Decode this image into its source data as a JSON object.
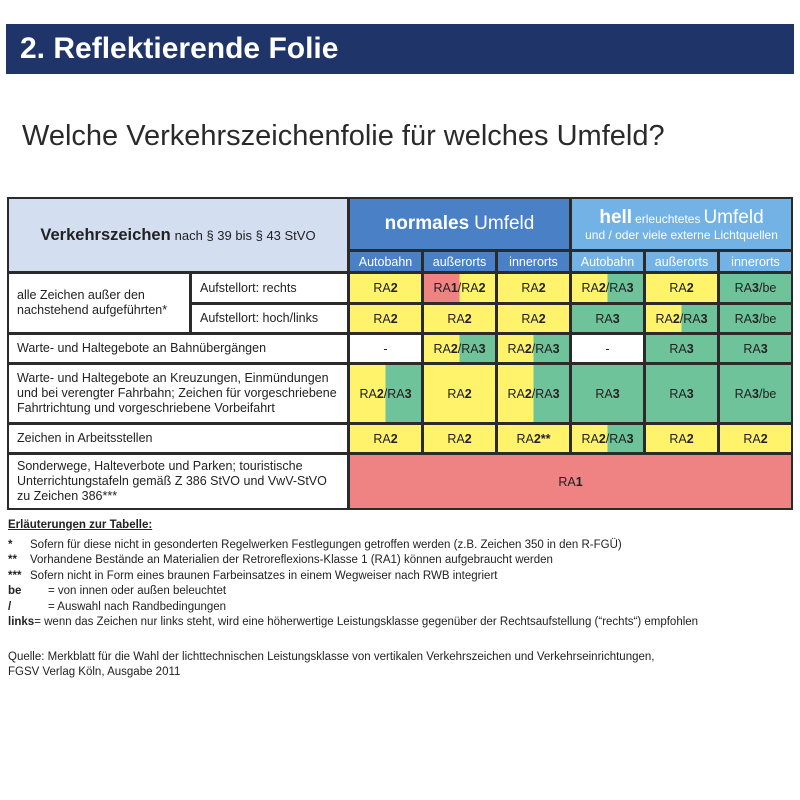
{
  "title": "2. Reflektierende Folie",
  "question": "Welche Verkehrszeichenfolie für welches Umfeld?",
  "colors": {
    "title_bar": "#1f3468",
    "normal_header": "#4a80c6",
    "hell_header": "#72b2e4",
    "corner": "#d3def0",
    "yellow": "#fff36b",
    "green": "#6fc39b",
    "red": "#ef8282",
    "white": "#ffffff"
  },
  "table": {
    "corner_bold": "Verkehrszeichen",
    "corner_rest": "nach § 39 bis § 43 StVO",
    "normal_bold": "normales",
    "normal_rest": "Umfeld",
    "hell_bold": "hell",
    "hell_small": "erleuchtetes",
    "hell_rest": "Umfeld",
    "hell_line2": "und / oder viele externe Lichtquellen",
    "subheaders": [
      "Autobahn",
      "außerorts",
      "innerorts",
      "Autobahn",
      "außerorts",
      "innerorts"
    ],
    "row_labels": {
      "group1": "alle Zeichen außer den nachstehend aufgeführten*",
      "group1_sub1": "Aufstellort: rechts",
      "group1_sub2": "Aufstellort: hoch/links",
      "row3": "Warte- und Haltegebote an Bahnübergängen",
      "row4": "Warte- und Haltegebote an Kreuzungen, Einmündungen und bei verengter Fahrbahn; Zeichen für vorgeschriebene Fahrtrichtung und vorgeschriebene Vorbeifahrt",
      "row5": "Zeichen in Arbeitsstellen",
      "row6": "Sonderwege, Halteverbote und Parken; touristische Unterrichtungstafeln gemäß Z 386 StVO und VwV-StVO zu Zeichen 386***"
    },
    "rows": [
      [
        {
          "t": "RA2",
          "f": [
            "yellow"
          ]
        },
        {
          "t": "RA1/RA2",
          "f": [
            "red",
            "yellow"
          ]
        },
        {
          "t": "RA2",
          "f": [
            "yellow"
          ]
        },
        {
          "t": "RA2/RA3",
          "f": [
            "yellow",
            "green"
          ]
        },
        {
          "t": "RA2",
          "f": [
            "yellow"
          ]
        },
        {
          "t": "RA3/be",
          "f": [
            "green"
          ]
        }
      ],
      [
        {
          "t": "RA2",
          "f": [
            "yellow"
          ]
        },
        {
          "t": "RA2",
          "f": [
            "yellow"
          ]
        },
        {
          "t": "RA2",
          "f": [
            "yellow"
          ]
        },
        {
          "t": "RA3",
          "f": [
            "green"
          ]
        },
        {
          "t": "RA2/RA3",
          "f": [
            "yellow",
            "green"
          ]
        },
        {
          "t": "RA3/be",
          "f": [
            "green"
          ]
        }
      ],
      [
        {
          "t": "-",
          "f": [
            "white"
          ]
        },
        {
          "t": "RA2/RA3",
          "f": [
            "yellow",
            "green"
          ]
        },
        {
          "t": "RA2/RA3",
          "f": [
            "yellow",
            "green"
          ]
        },
        {
          "t": "-",
          "f": [
            "white"
          ]
        },
        {
          "t": "RA3",
          "f": [
            "green"
          ]
        },
        {
          "t": "RA3",
          "f": [
            "green"
          ]
        }
      ],
      [
        {
          "t": "RA2/RA3",
          "f": [
            "yellow",
            "green"
          ]
        },
        {
          "t": "RA2",
          "f": [
            "yellow"
          ]
        },
        {
          "t": "RA2/RA3",
          "f": [
            "yellow",
            "green"
          ]
        },
        {
          "t": "RA3",
          "f": [
            "green"
          ]
        },
        {
          "t": "RA3",
          "f": [
            "green"
          ]
        },
        {
          "t": "RA3/be",
          "f": [
            "green"
          ]
        }
      ],
      [
        {
          "t": "RA2",
          "f": [
            "yellow"
          ]
        },
        {
          "t": "RA2",
          "f": [
            "yellow"
          ]
        },
        {
          "t": "RA2**",
          "f": [
            "yellow"
          ]
        },
        {
          "t": "RA2/RA3",
          "f": [
            "yellow",
            "green"
          ]
        },
        {
          "t": "RA2",
          "f": [
            "yellow"
          ]
        },
        {
          "t": "RA2",
          "f": [
            "yellow"
          ]
        }
      ]
    ],
    "last_row": {
      "t": "RA1",
      "f": [
        "red"
      ]
    }
  },
  "notes": {
    "heading": "Erläuterungen zur Tabelle:",
    "items": [
      {
        "key": "*",
        "text": "Sofern für diese nicht in gesonderten Regelwerken Festlegungen getroffen werden (z.B. Zeichen 350 in den R-FGÜ)"
      },
      {
        "key": "**",
        "text": "Vorhandene Bestände an Materialien der Retroreflexions-Klasse 1 (RA1) können aufgebraucht werden"
      },
      {
        "key": "***",
        "text": "Sofern nicht in Form eines braunen Farbeinsatzes in einem Wegweiser nach RWB integriert"
      },
      {
        "key": "be",
        "text": "= von innen oder außen beleuchtet"
      },
      {
        "key": "/",
        "text": "= Auswahl nach Randbedingungen"
      },
      {
        "key": "links",
        "text": "= wenn das Zeichen nur links steht, wird eine höherwertige Leistungsklasse gegenüber der Rechtsaufstellung (“rechts“) empfohlen"
      }
    ]
  },
  "source": {
    "line1": "Quelle: Merkblatt für die Wahl der lichttechnischen Leistungsklasse von vertikalen Verkehrszeichen und Verkehrseinrichtungen,",
    "line2": "FGSV Verlag Köln, Ausgabe 2011"
  }
}
